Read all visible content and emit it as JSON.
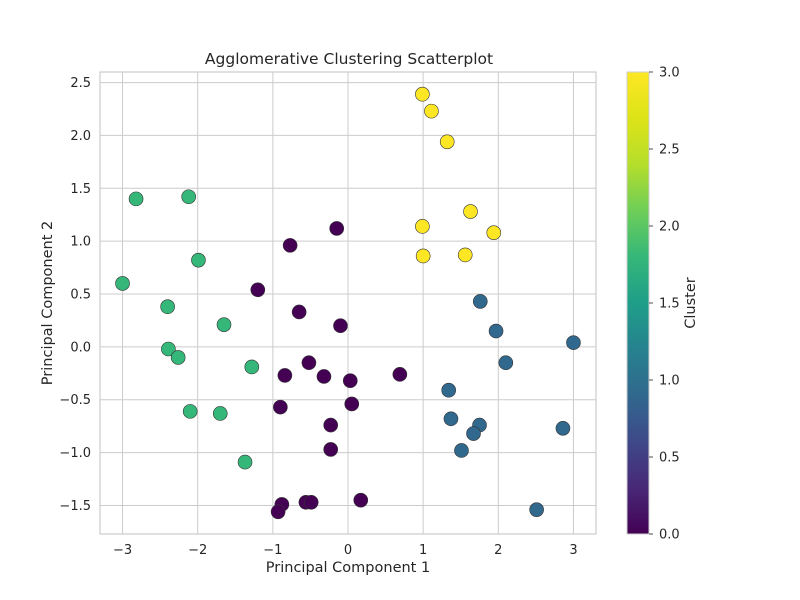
{
  "chart_data": {
    "type": "scatter",
    "title": "Agglomerative Clustering Scatterplot",
    "xlabel": "Principal Component 1",
    "ylabel": "Principal Component 2",
    "xlim": [
      -3.3,
      3.3
    ],
    "ylim": [
      -1.77,
      2.6
    ],
    "xticks": [
      -3,
      -2,
      -1,
      0,
      1,
      2,
      3
    ],
    "xtick_labels": [
      "−3",
      "−2",
      "−1",
      "0",
      "1",
      "2",
      "3"
    ],
    "yticks": [
      -1.5,
      -1.0,
      -0.5,
      0.0,
      0.5,
      1.0,
      1.5,
      2.0,
      2.5
    ],
    "ytick_labels": [
      "−1.5",
      "−1.0",
      "−0.5",
      "0.0",
      "0.5",
      "1.0",
      "1.5",
      "2.0",
      "2.5"
    ],
    "grid": true,
    "colormap": "viridis",
    "colorbar": {
      "label": "Cluster",
      "range": [
        0.0,
        3.0
      ],
      "ticks": [
        0.0,
        0.5,
        1.0,
        1.5,
        2.0,
        2.5,
        3.0
      ],
      "tick_labels": [
        "0.0",
        "0.5",
        "1.0",
        "1.5",
        "2.0",
        "2.5",
        "3.0"
      ]
    },
    "cluster_colors": [
      "#440154",
      "#31688e",
      "#35b779",
      "#fde725"
    ],
    "points": [
      {
        "x": -0.15,
        "y": 1.12,
        "cluster": 0
      },
      {
        "x": -0.77,
        "y": 0.96,
        "cluster": 0
      },
      {
        "x": -1.2,
        "y": 0.54,
        "cluster": 0
      },
      {
        "x": -0.65,
        "y": 0.33,
        "cluster": 0
      },
      {
        "x": -0.1,
        "y": 0.2,
        "cluster": 0
      },
      {
        "x": -0.52,
        "y": -0.15,
        "cluster": 0
      },
      {
        "x": -0.84,
        "y": -0.27,
        "cluster": 0
      },
      {
        "x": -0.32,
        "y": -0.28,
        "cluster": 0
      },
      {
        "x": 0.03,
        "y": -0.32,
        "cluster": 0
      },
      {
        "x": 0.69,
        "y": -0.26,
        "cluster": 0
      },
      {
        "x": -0.9,
        "y": -0.57,
        "cluster": 0
      },
      {
        "x": 0.05,
        "y": -0.54,
        "cluster": 0
      },
      {
        "x": -0.23,
        "y": -0.74,
        "cluster": 0
      },
      {
        "x": -0.23,
        "y": -0.97,
        "cluster": 0
      },
      {
        "x": 0.17,
        "y": -1.45,
        "cluster": 0
      },
      {
        "x": -0.56,
        "y": -1.47,
        "cluster": 0
      },
      {
        "x": -0.49,
        "y": -1.47,
        "cluster": 0
      },
      {
        "x": -0.88,
        "y": -1.49,
        "cluster": 0
      },
      {
        "x": -0.93,
        "y": -1.56,
        "cluster": 0
      },
      {
        "x": 1.76,
        "y": 0.43,
        "cluster": 1
      },
      {
        "x": 1.97,
        "y": 0.15,
        "cluster": 1
      },
      {
        "x": 3.0,
        "y": 0.04,
        "cluster": 1
      },
      {
        "x": 2.1,
        "y": -0.15,
        "cluster": 1
      },
      {
        "x": 1.34,
        "y": -0.41,
        "cluster": 1
      },
      {
        "x": 1.37,
        "y": -0.68,
        "cluster": 1
      },
      {
        "x": 1.75,
        "y": -0.74,
        "cluster": 1
      },
      {
        "x": 1.67,
        "y": -0.82,
        "cluster": 1
      },
      {
        "x": 2.86,
        "y": -0.77,
        "cluster": 1
      },
      {
        "x": 1.51,
        "y": -0.98,
        "cluster": 1
      },
      {
        "x": 2.51,
        "y": -1.54,
        "cluster": 1
      },
      {
        "x": -2.82,
        "y": 1.4,
        "cluster": 2
      },
      {
        "x": -2.12,
        "y": 1.42,
        "cluster": 2
      },
      {
        "x": -1.99,
        "y": 0.82,
        "cluster": 2
      },
      {
        "x": -3.0,
        "y": 0.6,
        "cluster": 2
      },
      {
        "x": -2.4,
        "y": 0.38,
        "cluster": 2
      },
      {
        "x": -1.65,
        "y": 0.21,
        "cluster": 2
      },
      {
        "x": -2.39,
        "y": -0.02,
        "cluster": 2
      },
      {
        "x": -2.26,
        "y": -0.1,
        "cluster": 2
      },
      {
        "x": -1.28,
        "y": -0.19,
        "cluster": 2
      },
      {
        "x": -2.1,
        "y": -0.61,
        "cluster": 2
      },
      {
        "x": -1.7,
        "y": -0.63,
        "cluster": 2
      },
      {
        "x": -1.37,
        "y": -1.09,
        "cluster": 2
      },
      {
        "x": 0.99,
        "y": 2.39,
        "cluster": 3
      },
      {
        "x": 1.11,
        "y": 2.23,
        "cluster": 3
      },
      {
        "x": 1.32,
        "y": 1.94,
        "cluster": 3
      },
      {
        "x": 1.63,
        "y": 1.28,
        "cluster": 3
      },
      {
        "x": 0.99,
        "y": 1.14,
        "cluster": 3
      },
      {
        "x": 1.94,
        "y": 1.08,
        "cluster": 3
      },
      {
        "x": 1.0,
        "y": 0.86,
        "cluster": 3
      },
      {
        "x": 1.56,
        "y": 0.87,
        "cluster": 3
      }
    ]
  }
}
